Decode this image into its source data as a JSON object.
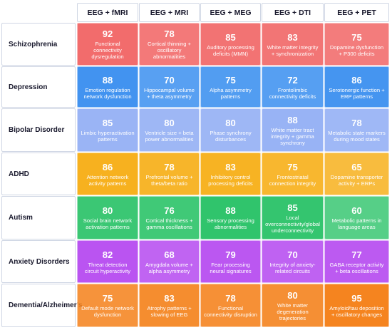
{
  "chart_data": {
    "type": "heatmap",
    "columns": [
      "EEG + fMRI",
      "EEG + MRI",
      "EEG + MEG",
      "EEG + DTI",
      "EEG + PET"
    ],
    "rows": [
      {
        "label": "Schizophrenia",
        "color": "#f26a6a",
        "cells": [
          {
            "value": 92,
            "text": "Functional connectivity dysregulation"
          },
          {
            "value": 78,
            "text": "Cortical thinning + oscillatory abnormalities"
          },
          {
            "value": 85,
            "text": "Auditory processing deficits (MMN)"
          },
          {
            "value": 83,
            "text": "White matter integrity + synchronization"
          },
          {
            "value": 75,
            "text": "Dopamine dysfunction + P300 deficits"
          }
        ]
      },
      {
        "label": "Depression",
        "color": "#3a8ff0",
        "cells": [
          {
            "value": 88,
            "text": "Emotion regulation network dysfunction"
          },
          {
            "value": 70,
            "text": "Hippocampal volume + theta asymmetry"
          },
          {
            "value": 75,
            "text": "Alpha asymmetry patterns"
          },
          {
            "value": 72,
            "text": "Frontolimbic connectivity deficits"
          },
          {
            "value": 86,
            "text": "Serotonergic function + ERP patterns"
          }
        ]
      },
      {
        "label": "Bipolar Disorder",
        "color": "#94b0f5",
        "cells": [
          {
            "value": 85,
            "text": "Limbic hyperactivation patterns"
          },
          {
            "value": 80,
            "text": "Ventricle size + beta power abnormalities"
          },
          {
            "value": 80,
            "text": "Phase synchrony disturbances"
          },
          {
            "value": 88,
            "text": "White matter tract integrity + gamma synchrony"
          },
          {
            "value": 78,
            "text": "Metabolic state markers during mood states"
          }
        ]
      },
      {
        "label": "ADHD",
        "color": "#f7ad12",
        "cells": [
          {
            "value": 86,
            "text": "Attention network activity patterns"
          },
          {
            "value": 78,
            "text": "Prefrontal volume + theta/beta ratio"
          },
          {
            "value": 83,
            "text": "Inhibitory control processing deficits"
          },
          {
            "value": 75,
            "text": "Frontostriatal connection integrity"
          },
          {
            "value": 65,
            "text": "Dopamine transporter activity + ERPs"
          }
        ]
      },
      {
        "label": "Autism",
        "color": "#27c266",
        "cells": [
          {
            "value": 80,
            "text": "Social brain network activation patterns"
          },
          {
            "value": 76,
            "text": "Cortical thickness + gamma oscillations"
          },
          {
            "value": 88,
            "text": "Sensory processing abnormalities"
          },
          {
            "value": 85,
            "text": "Local overconnectivity/global underconnectivity"
          },
          {
            "value": 60,
            "text": "Metabolic patterns in language areas"
          }
        ]
      },
      {
        "label": "Anxiety Disorders",
        "color": "#b445f0",
        "cells": [
          {
            "value": 82,
            "text": "Threat detection circuit hyperactivity"
          },
          {
            "value": 68,
            "text": "Amygdala volume + alpha asymmetry"
          },
          {
            "value": 79,
            "text": "Fear processing neural signatures"
          },
          {
            "value": 70,
            "text": "Integrity of anxiety-related circuits"
          },
          {
            "value": 77,
            "text": "GABA receptor activity + beta oscillations"
          }
        ]
      },
      {
        "label": "Dementia/Alzheimer's",
        "color": "#f5841f",
        "cells": [
          {
            "value": 75,
            "text": "Default mode network dysfunction"
          },
          {
            "value": 83,
            "text": "Atrophy patterns + slowing of EEG"
          },
          {
            "value": 78,
            "text": "Functional connectivity disruption"
          },
          {
            "value": 80,
            "text": "White matter degeneration trajectories"
          },
          {
            "value": 95,
            "text": "Amyloid/tau deposition + oscillatory changes"
          }
        ]
      }
    ]
  }
}
